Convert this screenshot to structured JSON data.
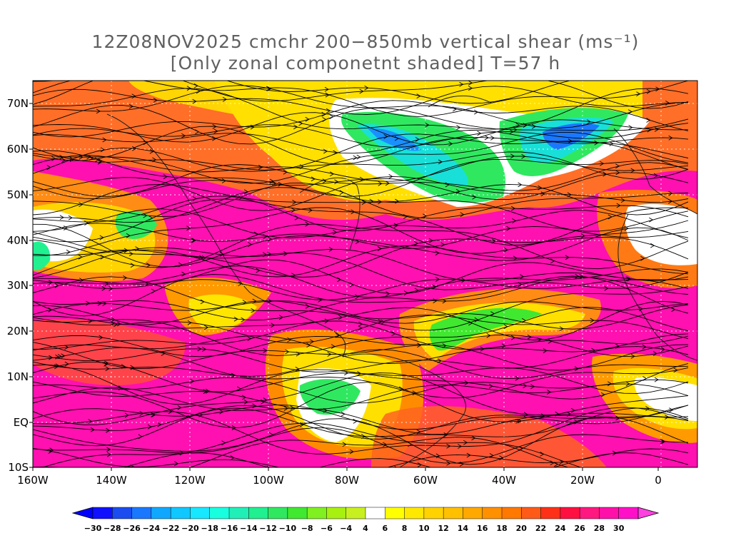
{
  "title": {
    "line1": "12Z08NOV2025 cmchr 200−850mb vertical shear (ms⁻¹)",
    "line2": "[Only zonal componetnt shaded] T=57 h"
  },
  "latitude_labels": [
    "70N",
    "60N",
    "50N",
    "40N",
    "30N",
    "20N",
    "10N",
    "EQ",
    "10S"
  ],
  "longitude_labels": [
    "160W",
    "140W",
    "120W",
    "100W",
    "80W",
    "60W",
    "40W",
    "20W",
    "0"
  ],
  "colorbar": {
    "labels": [
      "−30",
      "−28",
      "−26",
      "−24",
      "−22",
      "−20",
      "−18",
      "−16",
      "−14",
      "−12",
      "−10",
      "−8",
      "−6",
      "−4",
      "4",
      "6",
      "8",
      "10",
      "12",
      "14",
      "16",
      "18",
      "20",
      "22",
      "24",
      "26",
      "28",
      "30"
    ],
    "colors": [
      "#1010ff",
      "#1a4cf0",
      "#1a78ff",
      "#10a8ff",
      "#10c8ff",
      "#18e8ff",
      "#18ffe0",
      "#20f0b8",
      "#20f090",
      "#30e860",
      "#40e830",
      "#80f020",
      "#a8f010",
      "#c8f020",
      "#ffffff",
      "#ffff00",
      "#ffe800",
      "#ffd200",
      "#ffc000",
      "#ffa800",
      "#ff9000",
      "#ff7800",
      "#ff5a18",
      "#ff3018",
      "#ff1040",
      "#ff1880",
      "#ff10a8",
      "#ff10c8"
    ],
    "left_arrow_color": "#0000ff",
    "right_arrow_color": "#ff40e0"
  },
  "colors": {
    "ocean_background": "#ff10b0",
    "gridline": "#ffffff",
    "coastline": "#202020",
    "streamline": "#000000",
    "zero_contour": "#9040c0"
  }
}
